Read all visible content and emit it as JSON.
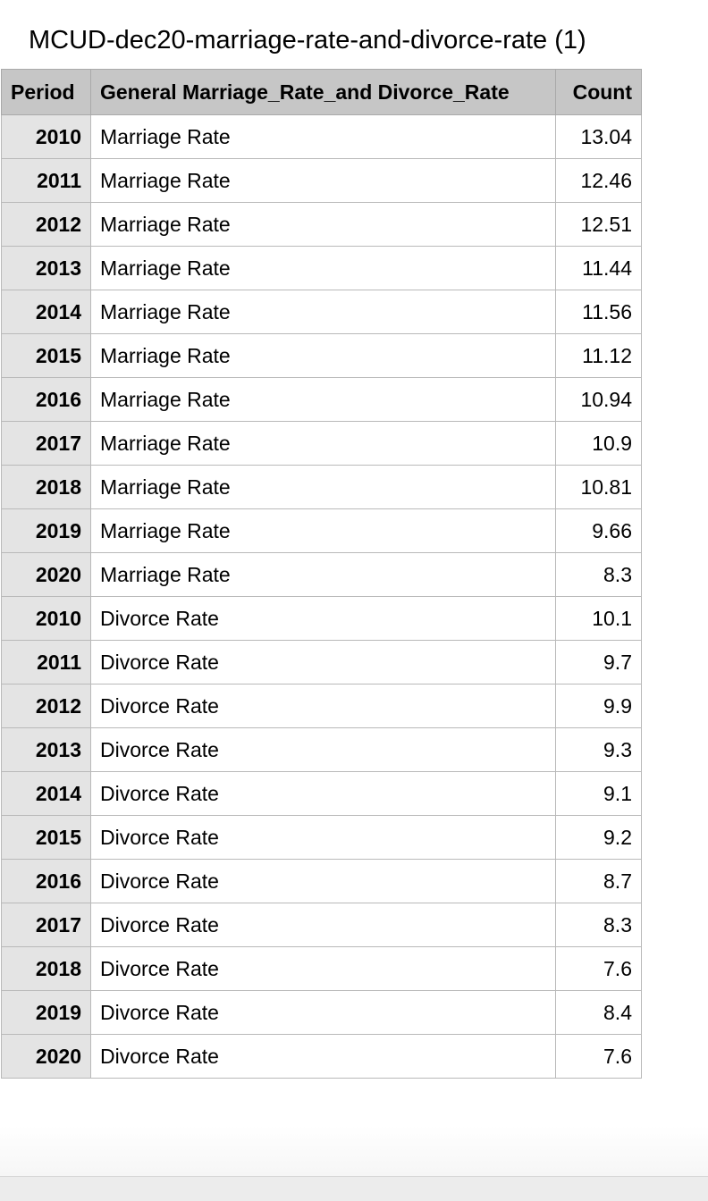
{
  "sheet": {
    "title": "MCUD-dec20-marriage-rate-and-divorce-rate (1)"
  },
  "table": {
    "headers": {
      "period": "Period",
      "label": "General Marriage_Rate_and Divorce_Rate",
      "count": "Count"
    },
    "rows": [
      {
        "period": "2010",
        "label": "Marriage Rate",
        "count": "13.04"
      },
      {
        "period": "2011",
        "label": "Marriage Rate",
        "count": "12.46"
      },
      {
        "period": "2012",
        "label": "Marriage Rate",
        "count": "12.51"
      },
      {
        "period": "2013",
        "label": "Marriage Rate",
        "count": "11.44"
      },
      {
        "period": "2014",
        "label": "Marriage Rate",
        "count": "11.56"
      },
      {
        "period": "2015",
        "label": "Marriage Rate",
        "count": "11.12"
      },
      {
        "period": "2016",
        "label": "Marriage Rate",
        "count": "10.94"
      },
      {
        "period": "2017",
        "label": "Marriage Rate",
        "count": "10.9"
      },
      {
        "period": "2018",
        "label": "Marriage Rate",
        "count": "10.81"
      },
      {
        "period": "2019",
        "label": "Marriage Rate",
        "count": "9.66"
      },
      {
        "period": "2020",
        "label": "Marriage Rate",
        "count": "8.3"
      },
      {
        "period": "2010",
        "label": "Divorce Rate",
        "count": "10.1"
      },
      {
        "period": "2011",
        "label": "Divorce Rate",
        "count": "9.7"
      },
      {
        "period": "2012",
        "label": "Divorce Rate",
        "count": "9.9"
      },
      {
        "period": "2013",
        "label": "Divorce Rate",
        "count": "9.3"
      },
      {
        "period": "2014",
        "label": "Divorce Rate",
        "count": "9.1"
      },
      {
        "period": "2015",
        "label": "Divorce Rate",
        "count": "9.2"
      },
      {
        "period": "2016",
        "label": "Divorce Rate",
        "count": "8.7"
      },
      {
        "period": "2017",
        "label": "Divorce Rate",
        "count": "8.3"
      },
      {
        "period": "2018",
        "label": "Divorce Rate",
        "count": "7.6"
      },
      {
        "period": "2019",
        "label": "Divorce Rate",
        "count": "8.4"
      },
      {
        "period": "2020",
        "label": "Divorce Rate",
        "count": "7.6"
      }
    ]
  }
}
